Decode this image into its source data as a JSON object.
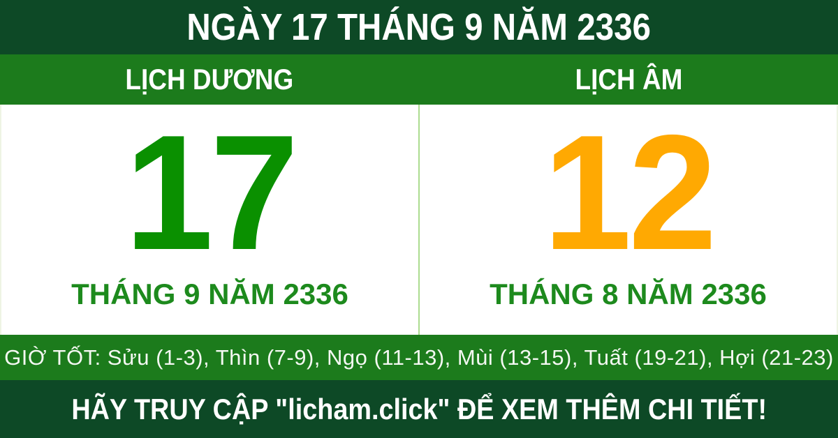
{
  "header": {
    "title": "NGÀY 17 THÁNG 9 NĂM 2336"
  },
  "columns": {
    "solar": {
      "label": "LỊCH DƯƠNG",
      "day": "17",
      "month_line": "THÁNG 9 NĂM 2336"
    },
    "lunar": {
      "label": "LỊCH ÂM",
      "day": "12",
      "month_line": "THÁNG 8 NĂM 2336"
    }
  },
  "good_hours": {
    "text": "GIỜ TỐT: Sửu (1-3), Thìn (7-9), Ngọ (11-13), Mùi (13-15), Tuất (19-21), Hợi (21-23)"
  },
  "footer": {
    "text": "HÃY TRUY CẬP \"licham.click\" ĐỂ XEM THÊM CHI TIẾT!"
  },
  "colors": {
    "dark_green": "#0d4926",
    "medium_green": "#1c7b1c",
    "solar_day_green": "#0a9000",
    "lunar_day_orange": "#ffa902",
    "month_text_green": "#1d8a1d",
    "divider_light_green": "#abdc8f",
    "text_white": "#ffffff"
  }
}
